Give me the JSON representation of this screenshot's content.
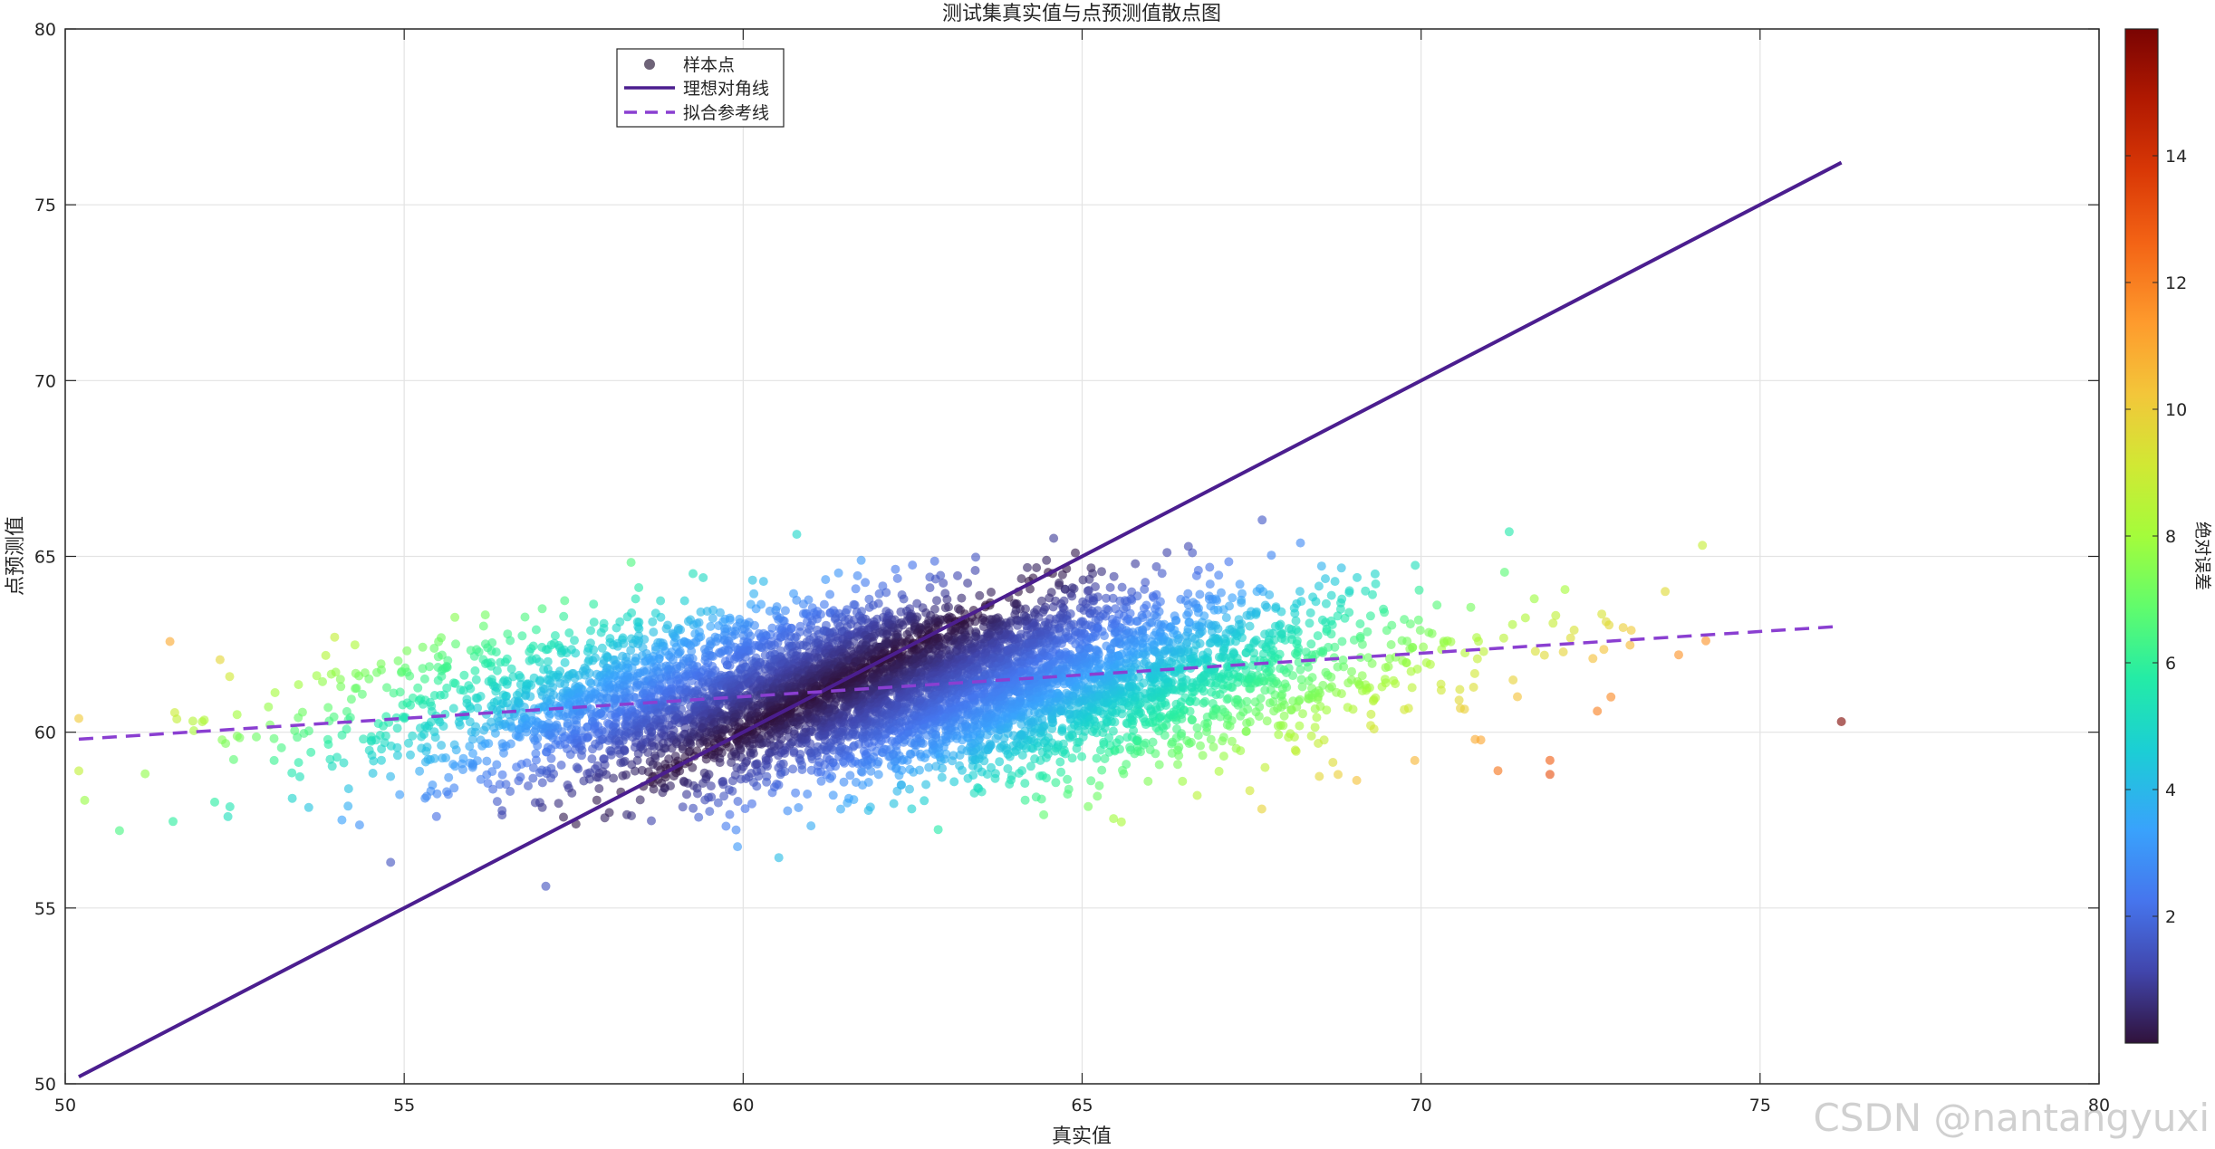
{
  "watermark": "CSDN @nantangyuxi",
  "chart_data": {
    "type": "scatter",
    "title": "测试集真实值与点预测值散点图",
    "xlabel": "真实值",
    "ylabel": "点预测值",
    "xlim": [
      50,
      80
    ],
    "ylim": [
      50,
      80
    ],
    "xticks": [
      50,
      55,
      60,
      65,
      70,
      75,
      80
    ],
    "yticks": [
      50,
      55,
      60,
      65,
      70,
      75,
      80
    ],
    "grid": true,
    "legend": {
      "placement": "top-left",
      "entries": [
        {
          "label": "样本点",
          "kind": "marker",
          "color": "#6e6378"
        },
        {
          "label": "理想对角线",
          "kind": "line",
          "color": "#4b1e8f"
        },
        {
          "label": "拟合参考线",
          "kind": "dashed",
          "color": "#8a3fd1"
        }
      ]
    },
    "colorbar": {
      "label": "绝对误差",
      "range": [
        0,
        16
      ],
      "ticks": [
        2,
        4,
        6,
        8,
        10,
        12,
        14
      ],
      "colormap": "turbo"
    },
    "series": [
      {
        "name": "样本点",
        "kind": "scatter",
        "distribution": {
          "count": 6500,
          "x_mean": 62.2,
          "x_sd": 3.3,
          "slope": 0.12,
          "intercept": 53.8,
          "noise_sd": 1.2
        },
        "points": [
          [
            76.2,
            60.3
          ],
          [
            71.9,
            59.2
          ],
          [
            71.9,
            58.8
          ],
          [
            72.8,
            61.0
          ],
          [
            72.6,
            60.6
          ],
          [
            73.8,
            62.2
          ],
          [
            74.2,
            62.6
          ],
          [
            50.2,
            58.9
          ],
          [
            54.8,
            56.3
          ],
          [
            71.3,
            65.7
          ],
          [
            64.9,
            65.1
          ],
          [
            73.1,
            62.9
          ],
          [
            73.6,
            64.0
          ],
          [
            52.4,
            57.6
          ],
          [
            50.8,
            57.2
          ]
        ]
      },
      {
        "name": "理想对角线",
        "kind": "line",
        "x": [
          50.2,
          76.2
        ],
        "y": [
          50.2,
          76.2
        ]
      },
      {
        "name": "拟合参考线",
        "kind": "dashed",
        "x": [
          50.2,
          76.1
        ],
        "y": [
          59.8,
          63.0
        ]
      }
    ]
  }
}
